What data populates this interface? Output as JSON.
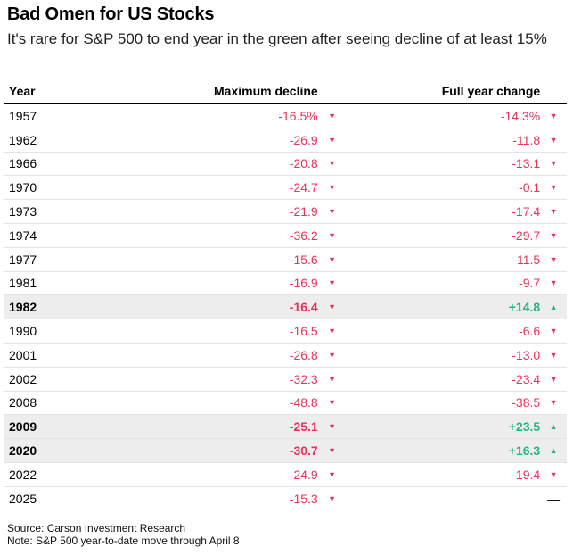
{
  "chart_data": {
    "type": "table",
    "title": "Bad Omen for US Stocks",
    "subtitle": "It's rare for S&P 500 to end year in the green after seeing decline of at least 15%",
    "columns": [
      "Year",
      "Maximum decline",
      "Full year change"
    ],
    "colors": {
      "negative": "#e8325a",
      "positive": "#23b77b",
      "highlight": "#ededed"
    },
    "rows": [
      {
        "year": "1957",
        "max_decline": "-16.5%",
        "max_arrow": "▼",
        "full_change": "-14.3%",
        "full_arrow": "▼",
        "full_dir": "neg",
        "highlight": false
      },
      {
        "year": "1962",
        "max_decline": "-26.9",
        "max_arrow": "▼",
        "full_change": "-11.8",
        "full_arrow": "▼",
        "full_dir": "neg",
        "highlight": false
      },
      {
        "year": "1966",
        "max_decline": "-20.8",
        "max_arrow": "▼",
        "full_change": "-13.1",
        "full_arrow": "▼",
        "full_dir": "neg",
        "highlight": false
      },
      {
        "year": "1970",
        "max_decline": "-24.7",
        "max_arrow": "▼",
        "full_change": "-0.1",
        "full_arrow": "▼",
        "full_dir": "neg",
        "highlight": false
      },
      {
        "year": "1973",
        "max_decline": "-21.9",
        "max_arrow": "▼",
        "full_change": "-17.4",
        "full_arrow": "▼",
        "full_dir": "neg",
        "highlight": false
      },
      {
        "year": "1974",
        "max_decline": "-36.2",
        "max_arrow": "▼",
        "full_change": "-29.7",
        "full_arrow": "▼",
        "full_dir": "neg",
        "highlight": false
      },
      {
        "year": "1977",
        "max_decline": "-15.6",
        "max_arrow": "▼",
        "full_change": "-11.5",
        "full_arrow": "▼",
        "full_dir": "neg",
        "highlight": false
      },
      {
        "year": "1981",
        "max_decline": "-16.9",
        "max_arrow": "▼",
        "full_change": "-9.7",
        "full_arrow": "▼",
        "full_dir": "neg",
        "highlight": false
      },
      {
        "year": "1982",
        "max_decline": "-16.4",
        "max_arrow": "▼",
        "full_change": "+14.8",
        "full_arrow": "▲",
        "full_dir": "pos",
        "highlight": true
      },
      {
        "year": "1990",
        "max_decline": "-16.5",
        "max_arrow": "▼",
        "full_change": "-6.6",
        "full_arrow": "▼",
        "full_dir": "neg",
        "highlight": false
      },
      {
        "year": "2001",
        "max_decline": "-26.8",
        "max_arrow": "▼",
        "full_change": "-13.0",
        "full_arrow": "▼",
        "full_dir": "neg",
        "highlight": false
      },
      {
        "year": "2002",
        "max_decline": "-32.3",
        "max_arrow": "▼",
        "full_change": "-23.4",
        "full_arrow": "▼",
        "full_dir": "neg",
        "highlight": false
      },
      {
        "year": "2008",
        "max_decline": "-48.8",
        "max_arrow": "▼",
        "full_change": "-38.5",
        "full_arrow": "▼",
        "full_dir": "neg",
        "highlight": false
      },
      {
        "year": "2009",
        "max_decline": "-25.1",
        "max_arrow": "▼",
        "full_change": "+23.5",
        "full_arrow": "▲",
        "full_dir": "pos",
        "highlight": true
      },
      {
        "year": "2020",
        "max_decline": "-30.7",
        "max_arrow": "▼",
        "full_change": "+16.3",
        "full_arrow": "▲",
        "full_dir": "pos",
        "highlight": true
      },
      {
        "year": "2022",
        "max_decline": "-24.9",
        "max_arrow": "▼",
        "full_change": "-19.4",
        "full_arrow": "▼",
        "full_dir": "neg",
        "highlight": false
      },
      {
        "year": "2025",
        "max_decline": "-15.3",
        "max_arrow": "▼",
        "full_change": "",
        "full_arrow": "—",
        "full_dir": "none",
        "highlight": false
      }
    ],
    "source": "Source: Carson Investment Research",
    "note": "Note: S&P 500 year-to-date move through April 8"
  }
}
